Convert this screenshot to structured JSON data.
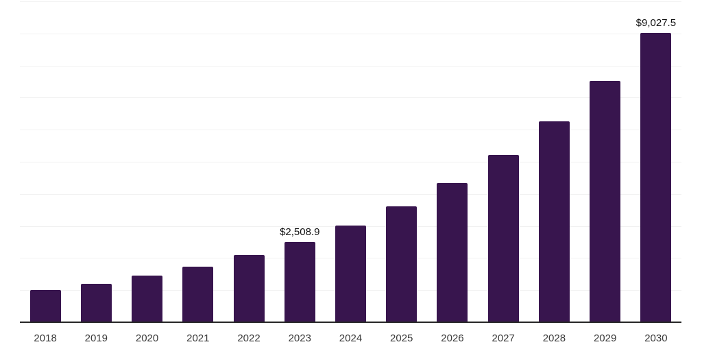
{
  "chart_data": {
    "type": "bar",
    "title": "",
    "xlabel": "",
    "ylabel": "",
    "categories": [
      "2018",
      "2019",
      "2020",
      "2021",
      "2022",
      "2023",
      "2024",
      "2025",
      "2026",
      "2027",
      "2028",
      "2029",
      "2030"
    ],
    "values": [
      1005,
      1205,
      1450,
      1740,
      2090,
      2508.9,
      3010,
      3615,
      4345,
      5215,
      6262,
      7530,
      9027.5
    ],
    "labeled_points": [
      {
        "category": "2023",
        "label": "$2,508.9"
      },
      {
        "category": "2030",
        "label": "$9,027.5"
      }
    ],
    "value_prefix": "$",
    "ylim": [
      0,
      10000
    ],
    "gridline_step": 1000,
    "grid": "horizontal",
    "y_tick_labels_visible": false,
    "legend": "none",
    "colors": {
      "bar": "#38154E",
      "grid": "#f1f1f1",
      "axis": "#262626",
      "tick_label": "#3a3a3a",
      "data_label": "#111111",
      "background": "#ffffff"
    }
  }
}
